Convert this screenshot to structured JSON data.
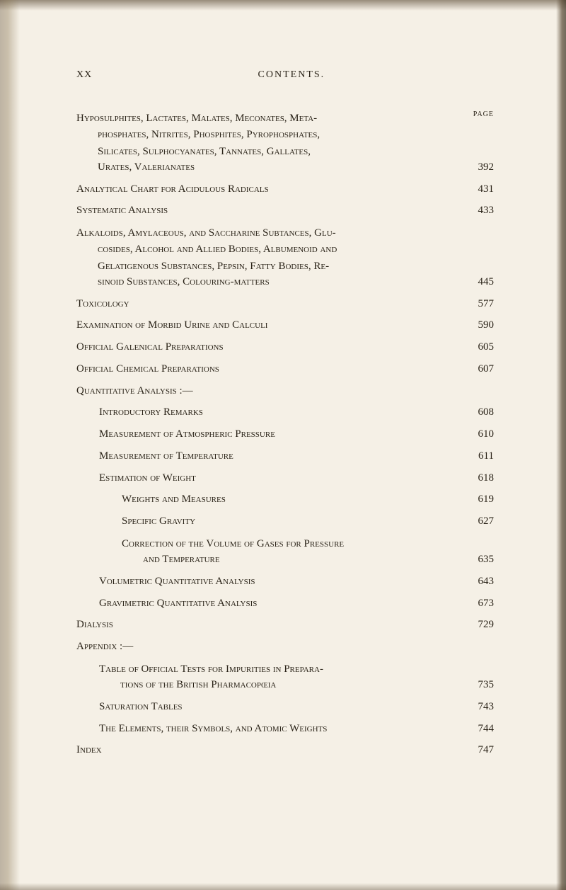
{
  "page_number": "XX",
  "header_title": "CONTENTS.",
  "page_label": "PAGE",
  "entries": [
    {
      "type": "multi",
      "lines": [
        "Hyposulphites, Lactates, Malates, Meconates, Meta-",
        "phosphates, Nitrites, Phosphites, Pyrophosphates,",
        "Silicates, Sulphocyanates, Tannates, Gallates,"
      ],
      "last_line": "Urates, Valerianates",
      "page": "392",
      "indent": 0
    },
    {
      "type": "single",
      "text": "Analytical Chart for Acidulous Radicals",
      "page": "431",
      "indent": 0
    },
    {
      "type": "single",
      "text": "Systematic Analysis",
      "page": "433",
      "indent": 0
    },
    {
      "type": "multi",
      "lines": [
        "Alkaloids, Amylaceous, and Saccharine Subtances, Glu-",
        "cosides, Alcohol and Allied Bodies, Albumenoid and",
        "Gelatigenous Substances, Pepsin, Fatty Bodies, Re-"
      ],
      "last_line": "sinoid Substances, Colouring-matters",
      "page": "445",
      "indent": 0
    },
    {
      "type": "single",
      "text": "Toxicology",
      "page": "577",
      "indent": 0
    },
    {
      "type": "single",
      "text": "Examination of Morbid Urine and Calculi",
      "page": "590",
      "indent": 0
    },
    {
      "type": "single",
      "text": "Official Galenical Preparations",
      "page": "605",
      "indent": 0
    },
    {
      "type": "single",
      "text": "Official Chemical Preparations",
      "page": "607",
      "indent": 0
    },
    {
      "type": "heading",
      "text": "Quantitative Analysis :—",
      "indent": 0
    },
    {
      "type": "single",
      "text": "Introductory Remarks",
      "page": "608",
      "indent": 1
    },
    {
      "type": "single",
      "text": "Measurement of Atmospheric Pressure",
      "page": "610",
      "indent": 1
    },
    {
      "type": "single",
      "text": "Measurement of Temperature",
      "page": "611",
      "indent": 1
    },
    {
      "type": "single",
      "text": "Estimation of Weight",
      "page": "618",
      "indent": 1
    },
    {
      "type": "single",
      "text": "Weights and Measures",
      "page": "619",
      "indent": 2
    },
    {
      "type": "single",
      "text": "Specific Gravity",
      "page": "627",
      "indent": 2
    },
    {
      "type": "multi",
      "lines": [
        "Correction of the Volume of Gases for Pressure"
      ],
      "last_line": "and Temperature",
      "page": "635",
      "indent": 2
    },
    {
      "type": "single",
      "text": "Volumetric Quantitative Analysis",
      "page": "643",
      "indent": 1
    },
    {
      "type": "single",
      "text": "Gravimetric Quantitative Analysis",
      "page": "673",
      "indent": 1
    },
    {
      "type": "single",
      "text": "Dialysis",
      "page": "729",
      "indent": 0
    },
    {
      "type": "heading",
      "text": "Appendix :—",
      "indent": 0
    },
    {
      "type": "multi",
      "lines": [
        "Table of Official Tests for Impurities in Prepara-"
      ],
      "last_line": "tions of the British Pharmacopœia",
      "page": "735",
      "indent": 1
    },
    {
      "type": "single",
      "text": "Saturation Tables",
      "page": "743",
      "indent": 1
    },
    {
      "type": "single",
      "text": "The Elements, their Symbols, and Atomic Weights",
      "page": "744",
      "indent": 1
    },
    {
      "type": "single",
      "text": "Index",
      "page": "747",
      "indent": 0
    }
  ],
  "colors": {
    "background": "#f5f0e6",
    "text": "#2a2318"
  }
}
